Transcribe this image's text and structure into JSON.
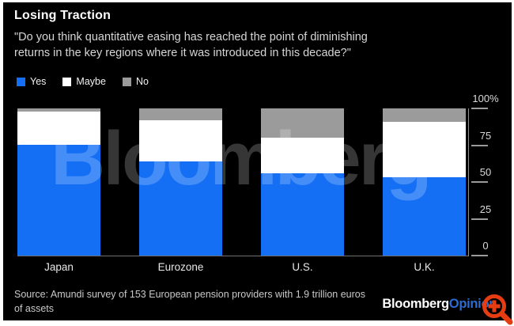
{
  "frame": {
    "background": "#000000",
    "border": "#ffffff"
  },
  "header": {
    "title": "Losing Traction",
    "subtitle_line1": "\"Do you think quantitative easing has reached the point of diminishing",
    "subtitle_line2": "returns in the key regions where it was introduced in this decade?\""
  },
  "legend": [
    {
      "label": "Yes",
      "color": "#146ff5"
    },
    {
      "label": "Maybe",
      "color": "#ffffff"
    },
    {
      "label": "No",
      "color": "#9b9b9b"
    }
  ],
  "watermark": {
    "text": "Bloomberg"
  },
  "chart_data": {
    "type": "bar",
    "stacked": true,
    "unit": "percent",
    "title": "Losing Traction",
    "categories": [
      "Japan",
      "Eurozone",
      "U.S.",
      "U.K."
    ],
    "series": [
      {
        "name": "Yes",
        "color": "#146ff5",
        "values": [
          75,
          64,
          56,
          53
        ]
      },
      {
        "name": "Maybe",
        "color": "#ffffff",
        "values": [
          23,
          28,
          24,
          38
        ]
      },
      {
        "name": "No",
        "color": "#9b9b9b",
        "values": [
          2,
          8,
          20,
          9
        ]
      }
    ],
    "y_axis": {
      "position": "right",
      "min": 0,
      "max": 100,
      "tick_values": [
        100,
        75,
        50,
        25,
        0
      ],
      "tick_labels": [
        "100%",
        "75",
        "50",
        "25",
        "0"
      ]
    },
    "grid": false,
    "legend_position": "top-left"
  },
  "footer": {
    "source_line1": "Source: Amundi survey of 153 European pension providers with 1.9 trillion euros",
    "source_line2": "of assets",
    "logo": {
      "part1": "Bloomberg",
      "part2": "Opinion",
      "part1_color": "#ffffff",
      "part2_color": "#2a6bd4"
    }
  },
  "cursor": {
    "icon": "zoom-magnifier",
    "color": "#e63c12"
  }
}
